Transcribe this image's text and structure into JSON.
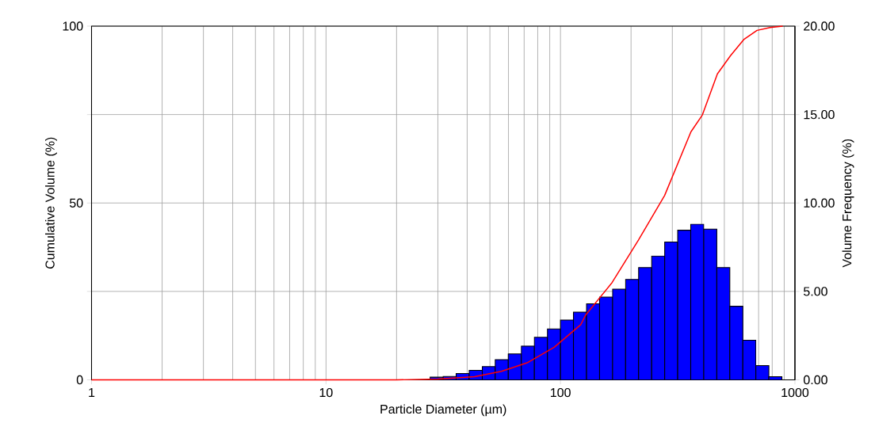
{
  "chart_data": {
    "type": "histogram",
    "xlabel": "Particle Diameter (µm)",
    "ylabel": "Cumulative Volume (%)",
    "y2label": "Volume Frequency (%)",
    "log": "x",
    "grid": true,
    "xlim": [
      1,
      1000
    ],
    "xticks": [
      1,
      10,
      100,
      1000
    ],
    "ylim": [
      0,
      100
    ],
    "yticks": [
      0,
      {
        "value": 25,
        "label": null
      },
      50,
      {
        "value": 75,
        "label": null
      },
      100
    ],
    "y2lim": [
      0,
      20
    ],
    "y2ticks": [
      {
        "value": 0,
        "label": "0.00"
      },
      {
        "value": 5,
        "label": "5.00"
      },
      {
        "value": 10,
        "label": "10.00"
      },
      {
        "value": 15,
        "label": "15.00"
      },
      {
        "value": 20,
        "label": "20.00"
      }
    ],
    "series": [
      {
        "axis": "y2",
        "color": "#0000ff",
        "bins": [
          27.8,
          31.6,
          35.9,
          40.8,
          46.4,
          52.7,
          59.9,
          68.1,
          77.4,
          88.0,
          100,
          113.6,
          129.2,
          146.8,
          166.8,
          189.6,
          215.4,
          244.9,
          278.3,
          316.2,
          359.4,
          408.4,
          464.2,
          527.5,
          599.5,
          681.3,
          774.3,
          879.9
        ],
        "values": [
          0.15,
          0.19,
          0.36,
          0.54,
          0.75,
          1.14,
          1.47,
          1.91,
          2.41,
          2.88,
          3.38,
          3.83,
          4.3,
          4.68,
          5.13,
          5.68,
          6.35,
          7.0,
          7.79,
          8.46,
          8.8,
          8.52,
          6.35,
          4.16,
          2.24,
          0.81,
          0.18
        ]
      },
      {
        "type": "line",
        "axis": "y",
        "color": "#ff0000",
        "x": [
          1,
          20,
          30,
          43,
          56,
          72,
          94,
          122,
          128,
          166,
          215,
          278,
          360,
          403,
          467,
          532,
          605,
          689,
          783,
          887
        ],
        "values": [
          0,
          0,
          0.2,
          0.9,
          2.4,
          4.8,
          9.2,
          15.6,
          18.3,
          27.5,
          39.5,
          52.1,
          70.1,
          74.9,
          86.5,
          91.7,
          96.2,
          98.8,
          99.6,
          100
        ]
      }
    ]
  }
}
